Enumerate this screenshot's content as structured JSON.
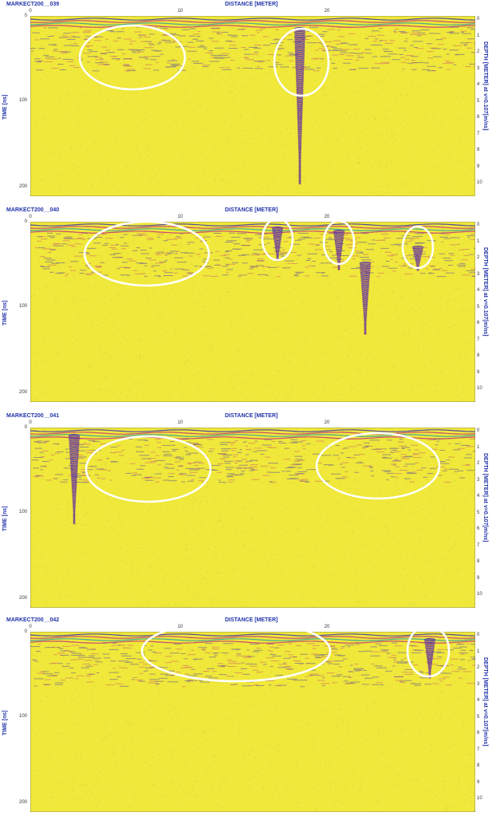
{
  "axes": {
    "x_label": "DISTANCE [METER]",
    "x_ticks": [
      "0",
      "10",
      "20"
    ],
    "y_label": "TIME [ns]",
    "y_ticks": [
      "0",
      "100",
      "200"
    ],
    "depth_label": "DEPTH [METER] at v=0.107[m/ns]",
    "depth_ticks": [
      "0",
      "1",
      "2",
      "3",
      "4",
      "5",
      "6",
      "7",
      "8",
      "9",
      "10"
    ]
  },
  "colors": {
    "background": "#f0e83a",
    "noise": "#b8c24a",
    "band_blue": "#3a2fb0",
    "band_magenta": "#c0307a",
    "highlight": "#ffffff"
  },
  "panels": [
    {
      "title": "MARKECT200__039"
    },
    {
      "title": "MARKECT200__040"
    },
    {
      "title": "MARKECT200__041"
    },
    {
      "title": "MARKECT200__042"
    }
  ]
}
